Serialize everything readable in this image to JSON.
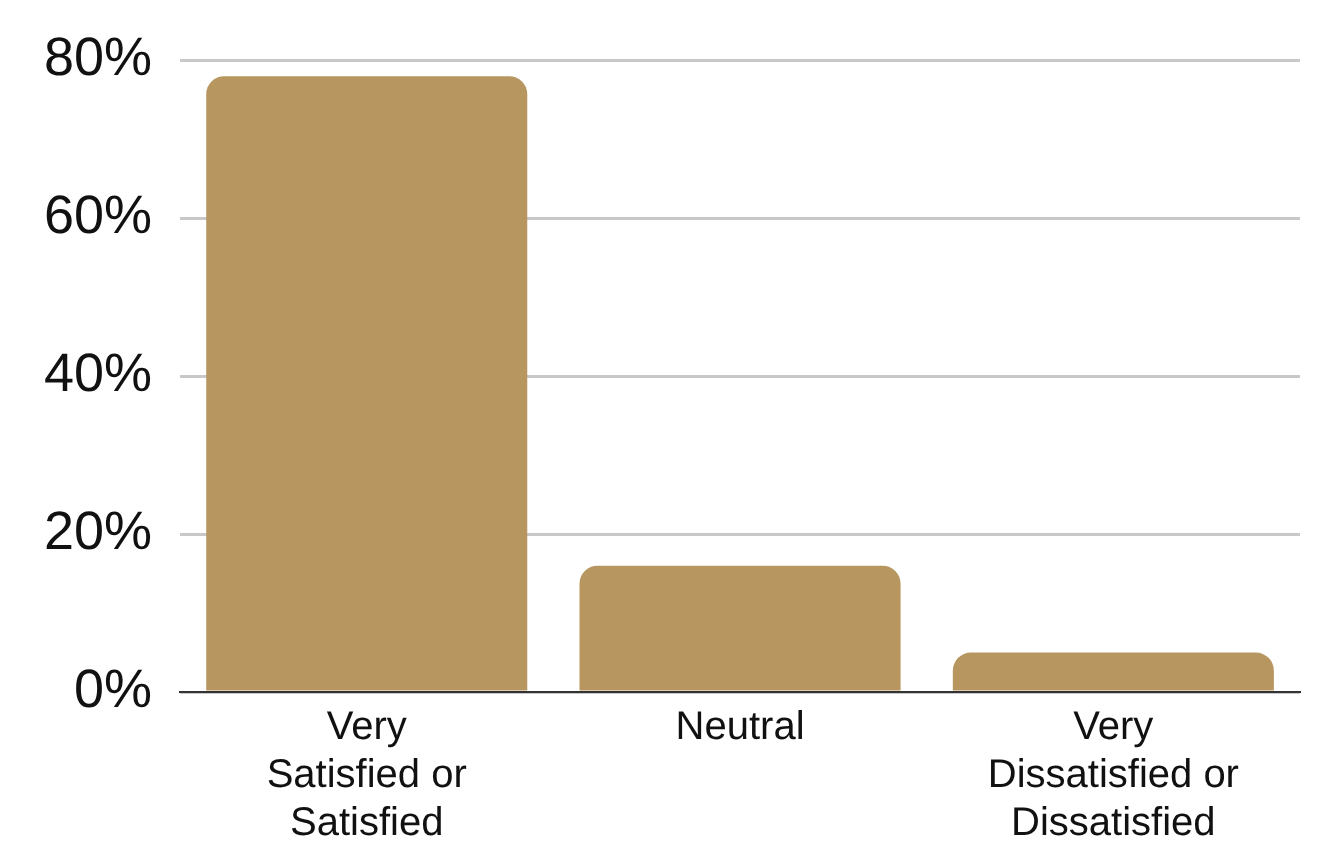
{
  "chart_data": {
    "type": "bar",
    "categories": [
      "Very Satisfied or Satisfied",
      "Neutral",
      "Very Dissatisfied or Dissatisfied"
    ],
    "values": [
      78,
      16,
      5
    ],
    "color": "#b89660",
    "ylim": [
      0,
      80
    ],
    "yticks": [
      {
        "value": 0,
        "label": "0%"
      },
      {
        "value": 20,
        "label": "20%"
      },
      {
        "value": 40,
        "label": "40%"
      },
      {
        "value": 60,
        "label": "60%"
      },
      {
        "value": 80,
        "label": "80%"
      }
    ],
    "grid": "y",
    "legend": false
  }
}
